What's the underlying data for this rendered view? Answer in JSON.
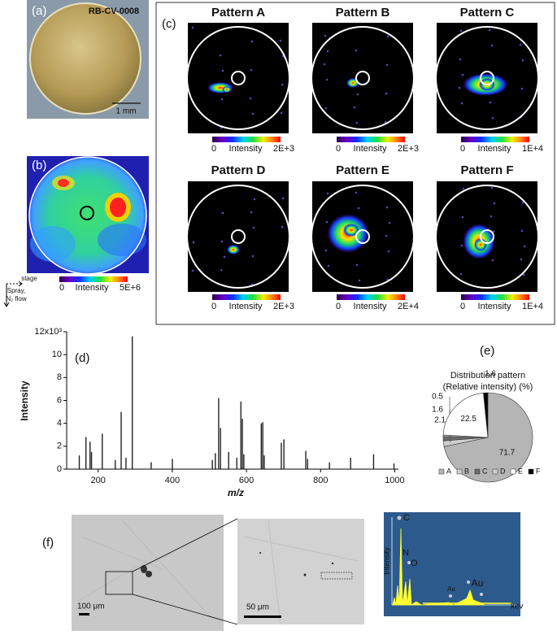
{
  "panels": {
    "a": {
      "label": "(a)",
      "sample": "RB-CV-0008",
      "scale": "1 mm"
    },
    "b": {
      "label": "(b)",
      "colorbar": {
        "min": "0",
        "title": "Intensity",
        "max": "5E+6"
      },
      "stage": "stage",
      "spray": "Spray,",
      "flow": "N₂ flow"
    },
    "c": {
      "label": "(c)",
      "patterns": [
        {
          "title": "Pattern A",
          "min": "0",
          "label": "Intensity",
          "max": "2E+3"
        },
        {
          "title": "Pattern B",
          "min": "0",
          "label": "Intensity",
          "max": "2E+3"
        },
        {
          "title": "Pattern C",
          "min": "0",
          "label": "Intensity",
          "max": "1E+4"
        },
        {
          "title": "Pattern D",
          "min": "0",
          "label": "Intensity",
          "max": "2E+3"
        },
        {
          "title": "Pattern E",
          "min": "0",
          "label": "Intensity",
          "max": "2E+4"
        },
        {
          "title": "Pattern F",
          "min": "0",
          "label": "Intensity",
          "max": "1E+4"
        }
      ]
    },
    "f": {
      "label": "(f)",
      "scale1": "100 μm",
      "scale2": "50 μm",
      "eds": {
        "ylabel": "Intensity",
        "xlabel": "kev",
        "peaks": [
          "C",
          "N",
          "O",
          "Au",
          "Au"
        ]
      }
    }
  },
  "chart_data": [
    {
      "type": "stick",
      "label": "(d)",
      "x_label": "m/z",
      "y_label": "Intensity",
      "color": "#222222",
      "x": [
        149,
        167,
        178,
        182,
        211,
        246,
        262,
        275,
        292,
        343,
        400,
        508,
        516,
        525,
        530,
        552,
        574,
        585,
        589,
        593,
        640,
        644,
        648,
        694,
        701,
        760,
        765,
        824,
        881,
        943,
        998
      ],
      "values": [
        1.2,
        2.8,
        2.4,
        1.5,
        3.1,
        0.8,
        5.0,
        1.0,
        11.6,
        0.6,
        0.9,
        0.8,
        1.4,
        6.2,
        3.6,
        1.5,
        1.0,
        5.9,
        4.4,
        1.3,
        4.0,
        4.1,
        1.2,
        2.3,
        2.6,
        1.6,
        0.9,
        0.6,
        1.0,
        1.3,
        0.5
      ],
      "xlim": [
        115,
        1010
      ],
      "xticks": [
        200,
        400,
        600,
        800,
        1000
      ],
      "ylim": [
        0,
        12
      ],
      "yticks": [
        0,
        2,
        4,
        6,
        8,
        10,
        {
          "value": 12,
          "label": "12x10³"
        }
      ]
    },
    {
      "type": "pie",
      "label": "(e)",
      "title": "Distribution pattern",
      "subtitle": "(Relative intensity) (%)",
      "categories": [
        "A",
        "B",
        "C",
        "D",
        "E",
        "F"
      ],
      "values": [
        71.7,
        2.1,
        1.6,
        0.5,
        22.5,
        1.6
      ],
      "colors": [
        "#b5b5b5",
        "#dadada",
        "#6a6a6a",
        "#cfcfcf",
        "#ffffff",
        "#000000"
      ],
      "legend": "bottom"
    }
  ]
}
